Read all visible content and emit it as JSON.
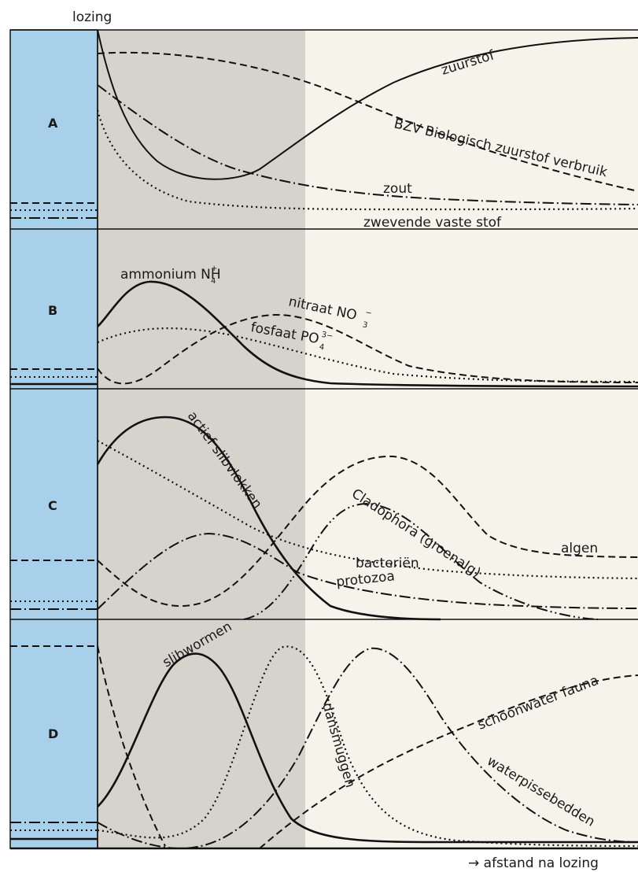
{
  "header": {
    "lozing_label": "lozing"
  },
  "footer": {
    "axis_label": "→ afstand na lozing"
  },
  "colors": {
    "outfall_blue": "#a9d0ea",
    "zone_polluted": "#d5d3cc",
    "zone_clean": "#f5f3ea",
    "line": "#111111"
  },
  "panels": [
    {
      "letter": "A",
      "labels": {
        "zuurstof": "zuurstof",
        "bzv": "BZV Biologisch zuurstof verbruik",
        "zout": "zout",
        "zwevende": "zwevende vaste stof"
      }
    },
    {
      "letter": "B",
      "labels": {
        "ammonium": "ammonium NH",
        "ammonium_sub": "4",
        "ammonium_sup": "+",
        "nitraat": "nitraat NO",
        "nitraat_sub": "3",
        "nitraat_sup": "−",
        "fosfaat": "fosfaat PO",
        "fosfaat_sub": "4",
        "fosfaat_sup": "3−"
      }
    },
    {
      "letter": "C",
      "labels": {
        "actief": "actief slibvlokken",
        "cladophora": "Cladophora (groenalg)",
        "algen": "algen",
        "bacterien": "bacteriën",
        "protozoa": "protozoa"
      }
    },
    {
      "letter": "D",
      "labels": {
        "slibwormen": "slibwormen",
        "dansmuggen": "dansmuggen",
        "schoonwater": "schoonwater fauna",
        "waterpissebedden": "waterpissebedden"
      }
    }
  ]
}
